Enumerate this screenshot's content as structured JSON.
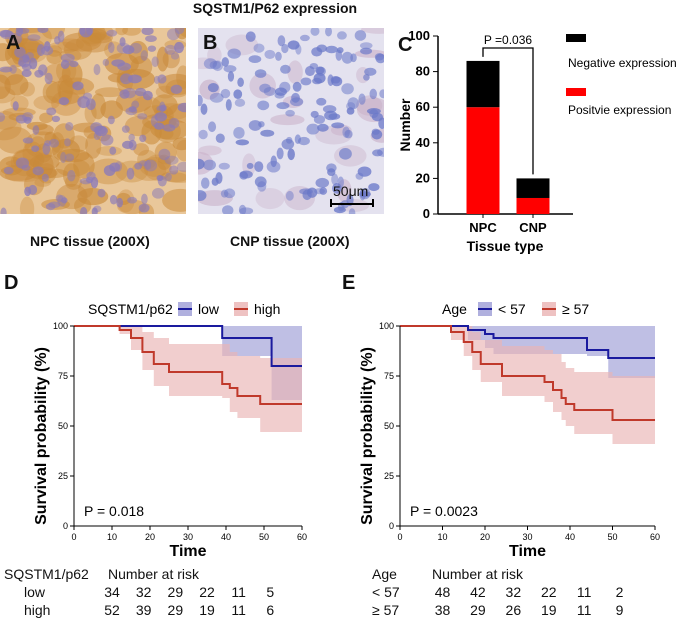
{
  "figure": {
    "title": "SQSTM1/P62 expression",
    "panel_letters": [
      "A",
      "B",
      "C",
      "D",
      "E"
    ],
    "image_a_caption": "NPC tissue (200X)",
    "image_b_caption": "CNP tissue (200X)",
    "scale_bar_label": "50μm"
  },
  "colors": {
    "negative": "#000000",
    "positive": "#ff0000",
    "low_line": "#1a1a9e",
    "low_band": "#9c9cd6",
    "high_line": "#c0392b",
    "high_band": "#eab3b3",
    "stain_brown": "#c98a3a",
    "stain_blue": "#6a78c8"
  },
  "chart_data": [
    {
      "id": "C",
      "type": "bar",
      "stacked": true,
      "categories": [
        "NPC",
        "CNP"
      ],
      "series": [
        {
          "name": "Positvie expression",
          "values": [
            60,
            9
          ],
          "color": "#ff0000"
        },
        {
          "name": "Negative expression",
          "values": [
            26,
            11
          ],
          "color": "#000000"
        }
      ],
      "xlabel": "Tissue type",
      "ylabel": "Number",
      "ylim": [
        0,
        100
      ],
      "yticks": [
        0,
        20,
        40,
        60,
        80,
        100
      ],
      "annotation": "P =0.036",
      "legend": [
        "Negative expression",
        "Positvie expression"
      ]
    },
    {
      "id": "D",
      "type": "line",
      "subtype": "kaplan-meier",
      "legend_title": "SQSTM1/p62",
      "xlabel": "Time",
      "ylabel": "Survival probability (%)",
      "xlim": [
        0,
        60
      ],
      "ylim": [
        0,
        100
      ],
      "xticks": [
        0,
        10,
        20,
        30,
        40,
        50,
        60
      ],
      "yticks": [
        0,
        25,
        50,
        75,
        100
      ],
      "pvalue": "P = 0.018",
      "series": [
        {
          "name": "low",
          "color": "#1a1a9e",
          "band": "#9c9cd6",
          "steps": [
            [
              0,
              100
            ],
            [
              39,
              100
            ],
            [
              39,
              94
            ],
            [
              52,
              94
            ],
            [
              52,
              80
            ],
            [
              60,
              80
            ]
          ],
          "upper": [
            [
              0,
              100
            ],
            [
              60,
              100
            ]
          ],
          "lower": [
            [
              0,
              100
            ],
            [
              39,
              100
            ],
            [
              39,
              85
            ],
            [
              52,
              85
            ],
            [
              52,
              63
            ],
            [
              60,
              63
            ]
          ]
        },
        {
          "name": "high",
          "color": "#c0392b",
          "band": "#eab3b3",
          "steps": [
            [
              0,
              100
            ],
            [
              12,
              100
            ],
            [
              12,
              98
            ],
            [
              15,
              98
            ],
            [
              15,
              94
            ],
            [
              18,
              94
            ],
            [
              18,
              87
            ],
            [
              21,
              87
            ],
            [
              21,
              81
            ],
            [
              25,
              81
            ],
            [
              25,
              77
            ],
            [
              39,
              77
            ],
            [
              39,
              71
            ],
            [
              41,
              71
            ],
            [
              41,
              69
            ],
            [
              43,
              69
            ],
            [
              43,
              65
            ],
            [
              49,
              65
            ],
            [
              49,
              61
            ],
            [
              60,
              61
            ]
          ],
          "upper": [
            [
              0,
              100
            ],
            [
              12,
              100
            ],
            [
              15,
              100
            ],
            [
              18,
              97
            ],
            [
              21,
              94
            ],
            [
              25,
              91
            ],
            [
              39,
              91
            ],
            [
              41,
              87
            ],
            [
              43,
              85
            ],
            [
              49,
              84
            ],
            [
              60,
              84
            ]
          ],
          "lower": [
            [
              0,
              100
            ],
            [
              12,
              96
            ],
            [
              15,
              88
            ],
            [
              18,
              78
            ],
            [
              21,
              70
            ],
            [
              25,
              65
            ],
            [
              39,
              64
            ],
            [
              41,
              57
            ],
            [
              43,
              54
            ],
            [
              49,
              47
            ],
            [
              60,
              47
            ]
          ]
        }
      ]
    },
    {
      "id": "E",
      "type": "line",
      "subtype": "kaplan-meier",
      "legend_title": "Age",
      "xlabel": "Time",
      "ylabel": "Survival probability (%)",
      "xlim": [
        0,
        60
      ],
      "ylim": [
        0,
        100
      ],
      "xticks": [
        0,
        10,
        20,
        30,
        40,
        50,
        60
      ],
      "yticks": [
        0,
        25,
        50,
        75,
        100
      ],
      "pvalue": "P = 0.0023",
      "series": [
        {
          "name": "< 57",
          "color": "#1a1a9e",
          "band": "#9c9cd6",
          "steps": [
            [
              0,
              100
            ],
            [
              16,
              100
            ],
            [
              16,
              98
            ],
            [
              20,
              98
            ],
            [
              20,
              96
            ],
            [
              22,
              96
            ],
            [
              22,
              94
            ],
            [
              44,
              94
            ],
            [
              44,
              88
            ],
            [
              49,
              88
            ],
            [
              49,
              84
            ],
            [
              60,
              84
            ]
          ],
          "upper": [
            [
              0,
              100
            ],
            [
              60,
              100
            ]
          ],
          "lower": [
            [
              0,
              100
            ],
            [
              16,
              93
            ],
            [
              20,
              89
            ],
            [
              22,
              86
            ],
            [
              44,
              85
            ],
            [
              49,
              74
            ],
            [
              60,
              72
            ]
          ]
        },
        {
          "name": "≥ 57",
          "color": "#c0392b",
          "band": "#eab3b3",
          "steps": [
            [
              0,
              100
            ],
            [
              12,
              100
            ],
            [
              12,
              97
            ],
            [
              15,
              97
            ],
            [
              15,
              92
            ],
            [
              17,
              92
            ],
            [
              17,
              87
            ],
            [
              19,
              87
            ],
            [
              19,
              81
            ],
            [
              24,
              81
            ],
            [
              24,
              75
            ],
            [
              34,
              75
            ],
            [
              34,
              72
            ],
            [
              36,
              72
            ],
            [
              36,
              68
            ],
            [
              38,
              68
            ],
            [
              38,
              64
            ],
            [
              39,
              64
            ],
            [
              39,
              61
            ],
            [
              41,
              61
            ],
            [
              41,
              58
            ],
            [
              50,
              58
            ],
            [
              50,
              53
            ],
            [
              60,
              53
            ]
          ],
          "upper": [
            [
              0,
              100
            ],
            [
              12,
              100
            ],
            [
              15,
              100
            ],
            [
              17,
              97
            ],
            [
              19,
              93
            ],
            [
              24,
              90
            ],
            [
              34,
              88
            ],
            [
              36,
              86
            ],
            [
              38,
              82
            ],
            [
              39,
              79
            ],
            [
              41,
              77
            ],
            [
              50,
              75
            ],
            [
              60,
              75
            ]
          ],
          "lower": [
            [
              0,
              100
            ],
            [
              12,
              93
            ],
            [
              15,
              85
            ],
            [
              17,
              78
            ],
            [
              19,
              72
            ],
            [
              24,
              65
            ],
            [
              34,
              62
            ],
            [
              36,
              57
            ],
            [
              38,
              53
            ],
            [
              39,
              50
            ],
            [
              41,
              46
            ],
            [
              50,
              41
            ],
            [
              60,
              38
            ]
          ]
        }
      ]
    }
  ],
  "risk_table_d": {
    "header_label": "SQSTM1/p62",
    "header_title": "Number at risk",
    "rows": [
      {
        "label": "low",
        "values": [
          "34",
          "32",
          "29",
          "22",
          "11",
          "5"
        ]
      },
      {
        "label": "high",
        "values": [
          "52",
          "39",
          "29",
          "19",
          "11",
          "6"
        ]
      }
    ]
  },
  "risk_table_e": {
    "header_label": "Age",
    "header_title": "Number at risk",
    "rows": [
      {
        "label": "< 57",
        "values": [
          "48",
          "42",
          "32",
          "22",
          "11",
          "2"
        ]
      },
      {
        "label": "≥ 57",
        "values": [
          "38",
          "29",
          "26",
          "19",
          "11",
          "9"
        ]
      }
    ]
  }
}
